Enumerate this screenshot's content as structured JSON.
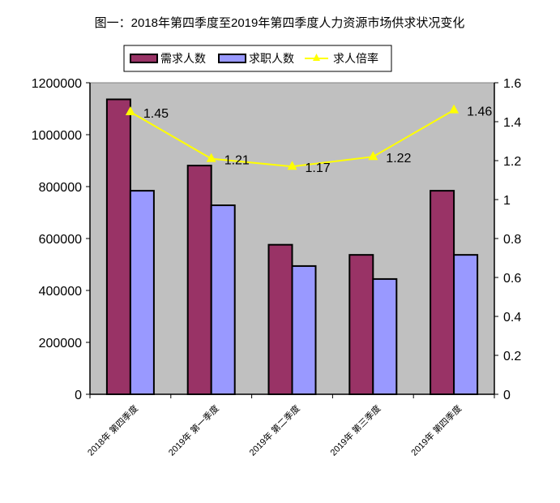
{
  "chart_data": {
    "type": "bar+line",
    "title": "图一：2018年第四季度至2019年第四季度人力资源市场供求状况变化",
    "categories": [
      "2018年 第四季度",
      "2019年 第一季度",
      "2019年 第二季度",
      "2019年 第三季度",
      "2019年 第四季度"
    ],
    "series": [
      {
        "name": "需求人数",
        "type": "bar",
        "axis": "left",
        "color": "#993366",
        "values": [
          1136000,
          881000,
          576000,
          537000,
          784000
        ]
      },
      {
        "name": "求职人数",
        "type": "bar",
        "axis": "left",
        "color": "#9999FF",
        "values": [
          784000,
          728000,
          494000,
          444000,
          537000
        ]
      },
      {
        "name": "求人倍率",
        "type": "line",
        "axis": "right",
        "color": "#FFFF00",
        "marker": "triangle",
        "values": [
          1.45,
          1.21,
          1.17,
          1.22,
          1.46
        ],
        "labels": [
          "1.45",
          "1.21",
          "1.17",
          "1.22",
          "1.46"
        ]
      }
    ],
    "left_axis": {
      "ylim": [
        0,
        1200000
      ],
      "ticks": [
        "0",
        "200000",
        "400000",
        "600000",
        "800000",
        "1000000",
        "1200000"
      ]
    },
    "right_axis": {
      "ylim": [
        0,
        1.6
      ],
      "ticks": [
        "0",
        "0.2",
        "0.4",
        "0.6",
        "0.8",
        "1",
        "1.2",
        "1.4",
        "1.6"
      ]
    },
    "plot_background": "#C0C0C0",
    "grid": false,
    "legend_position": "top"
  }
}
